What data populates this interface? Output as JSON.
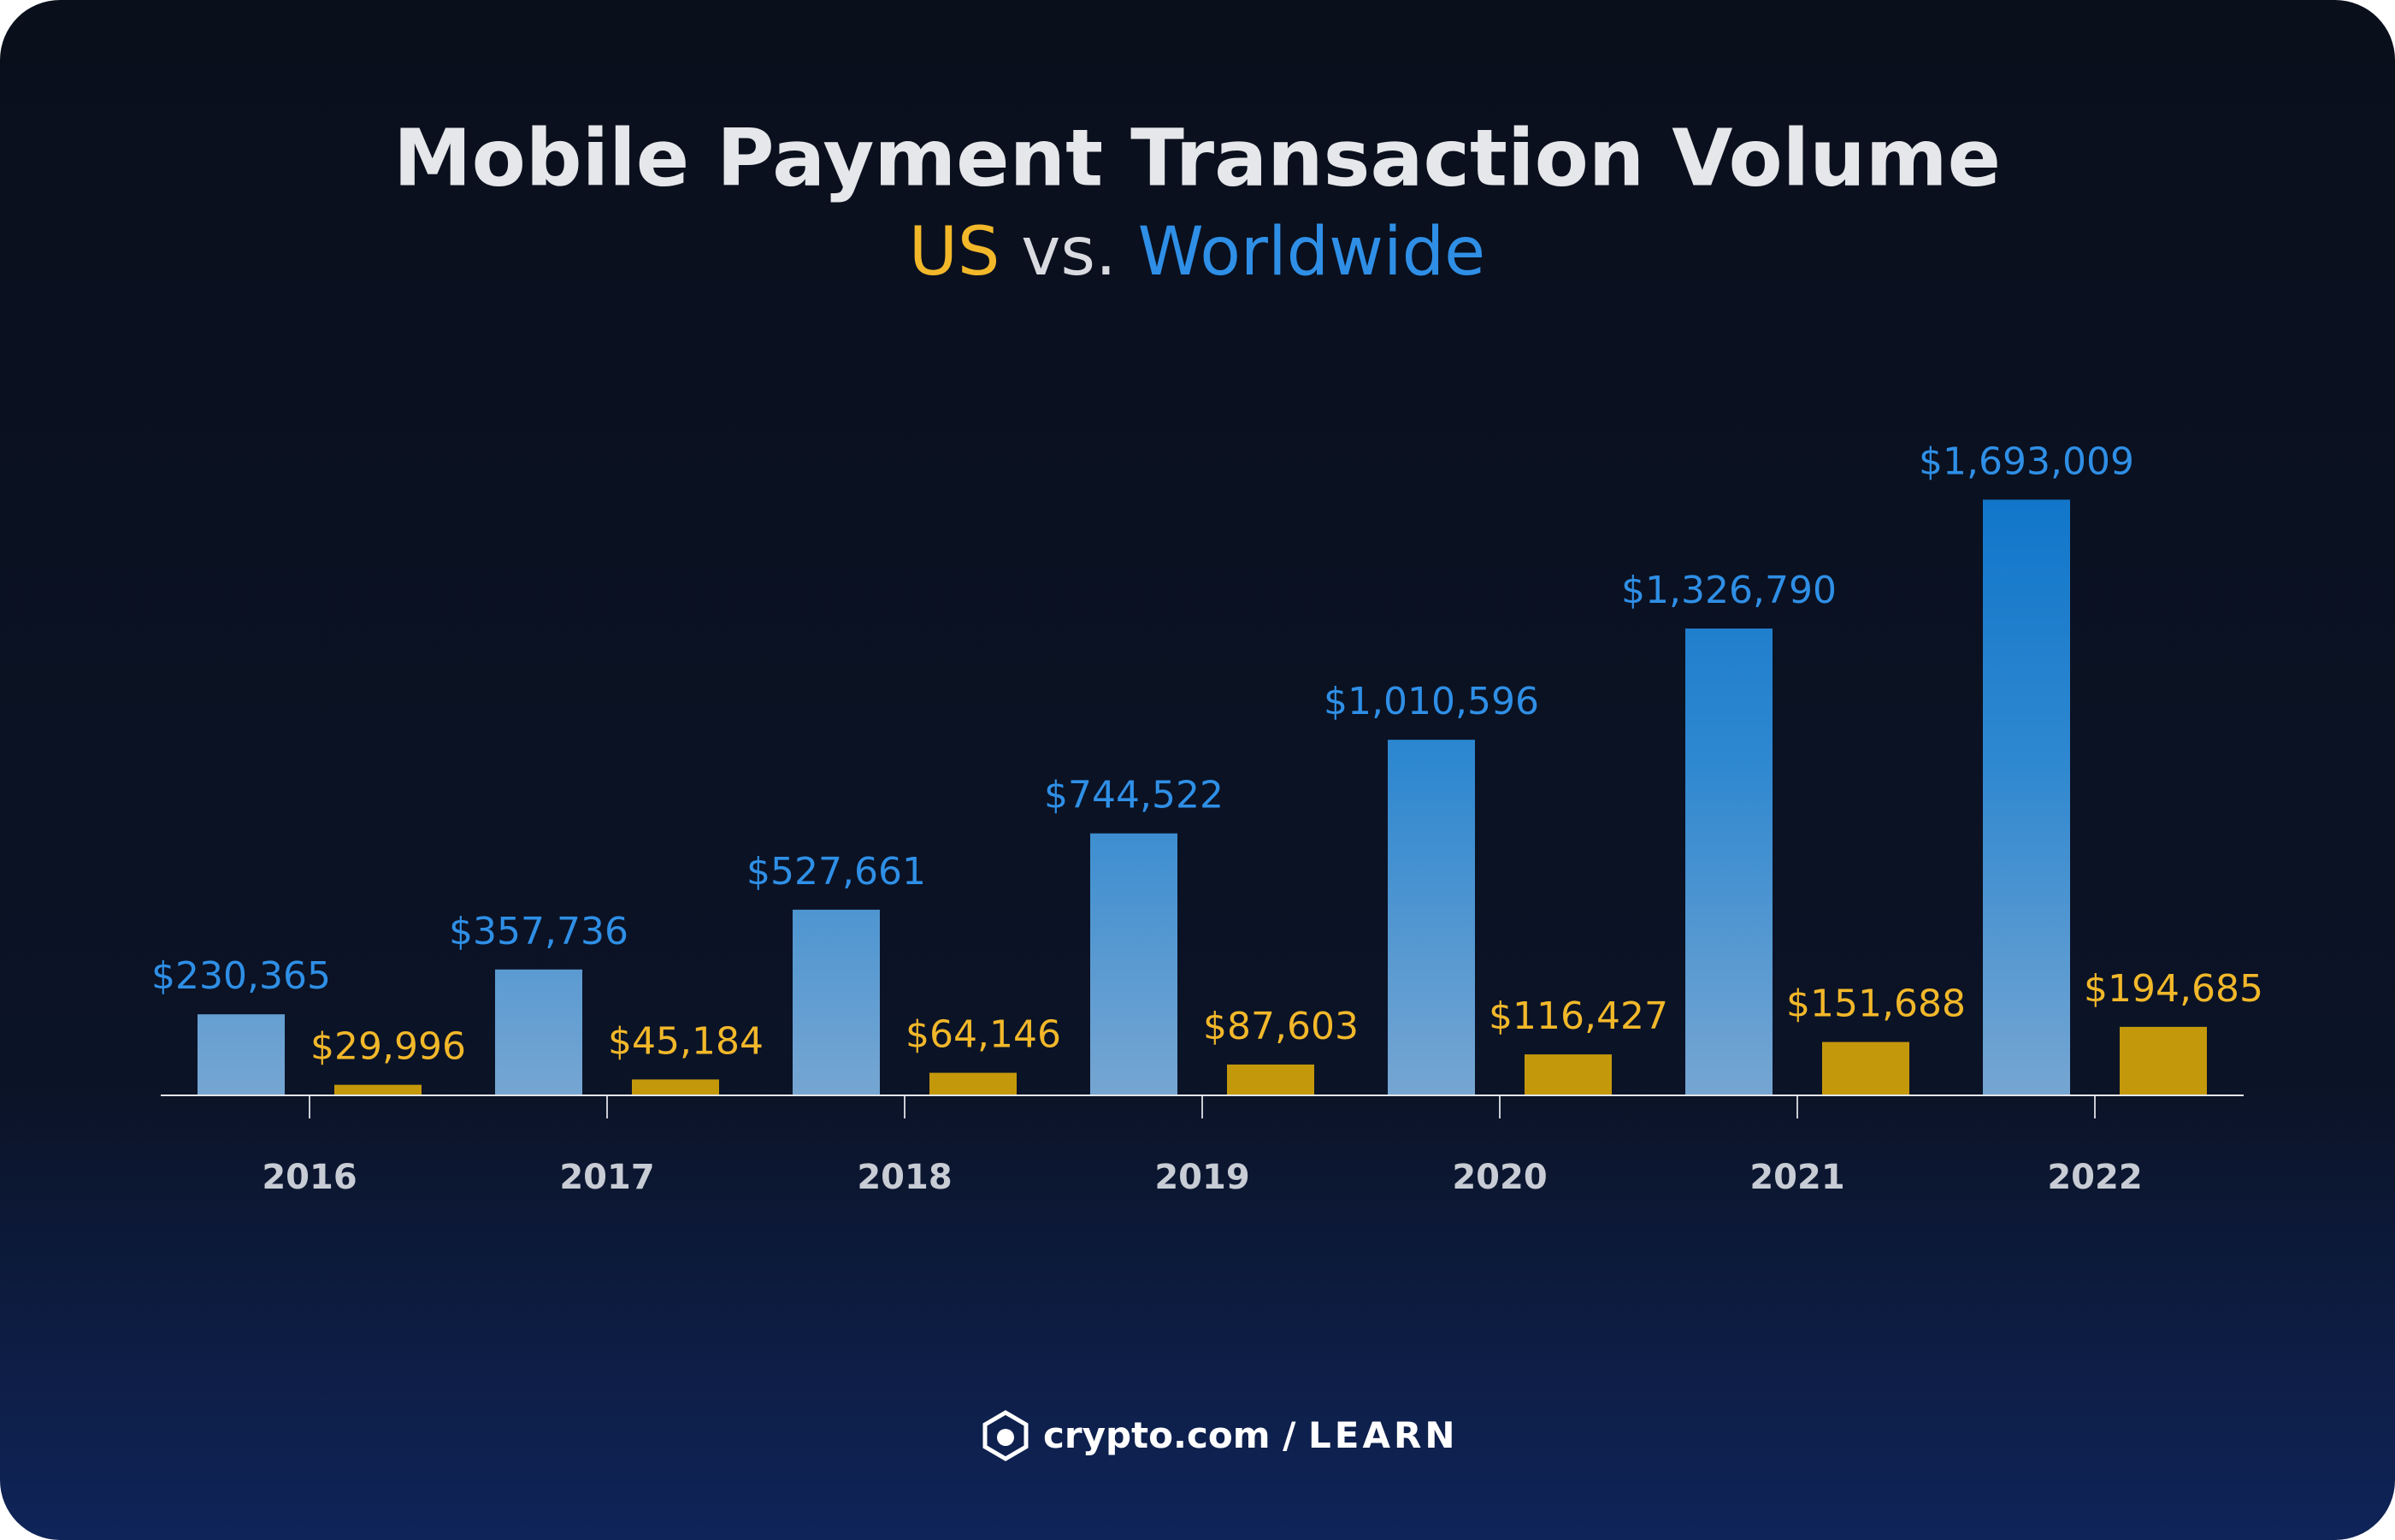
{
  "chart_data": {
    "type": "bar",
    "title": "Mobile Payment Transaction Volume",
    "legend_joiner": "vs.",
    "categories": [
      "2016",
      "2017",
      "2018",
      "2019",
      "2020",
      "2021",
      "2022"
    ],
    "series": [
      {
        "name": "Worldwide",
        "color": "#2f8fe6",
        "values": [
          230365,
          357736,
          527661,
          744522,
          1010596,
          1326790,
          1693009
        ],
        "value_labels": [
          "$230,365",
          "$357,736",
          "$527,661",
          "$744,522",
          "$1,010,596",
          "$1,326,790",
          "$1,693,009"
        ]
      },
      {
        "name": "US",
        "color": "#f2b82a",
        "values": [
          29996,
          45184,
          64146,
          87603,
          116427,
          151688,
          194685
        ],
        "value_labels": [
          "$29,996",
          "$45,184",
          "$64,146",
          "$87,603",
          "$116,427",
          "$151,688",
          "$194,685"
        ]
      }
    ],
    "ylim": [
      0,
      2000000
    ],
    "footer": {
      "brand": "crypto.com",
      "separator": "/",
      "section": "LEARN"
    }
  }
}
